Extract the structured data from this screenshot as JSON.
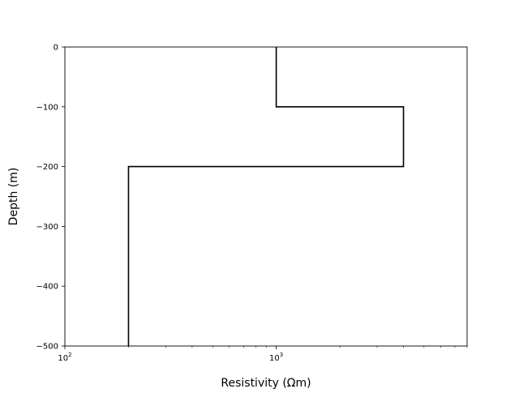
{
  "chart_data": {
    "type": "line",
    "step": true,
    "xlabel": "Resistivity (Ωm)",
    "ylabel": "Depth (m)",
    "xscale": "log",
    "xlim": [
      100,
      8000
    ],
    "ylim": [
      -500,
      0
    ],
    "grid": false,
    "series": [
      {
        "color": "#000000",
        "points": [
          {
            "x": 1000,
            "y": 0
          },
          {
            "x": 1000,
            "y": -100
          },
          {
            "x": 4000,
            "y": -100
          },
          {
            "x": 4000,
            "y": -200
          },
          {
            "x": 200,
            "y": -200
          },
          {
            "x": 200,
            "y": -500
          }
        ]
      }
    ],
    "yticks": [
      0,
      -100,
      -200,
      -300,
      -400,
      -500
    ],
    "ytick_labels": [
      "0",
      "−100",
      "−200",
      "−300",
      "−400",
      "−500"
    ],
    "xticks_major": [
      100,
      1000
    ],
    "xtick_labels": [
      {
        "base": "10",
        "exp": "2"
      },
      {
        "base": "10",
        "exp": "3"
      }
    ],
    "xticks_minor": [
      200,
      300,
      400,
      500,
      600,
      700,
      800,
      900,
      2000,
      3000,
      4000,
      5000,
      6000,
      7000,
      8000
    ]
  }
}
